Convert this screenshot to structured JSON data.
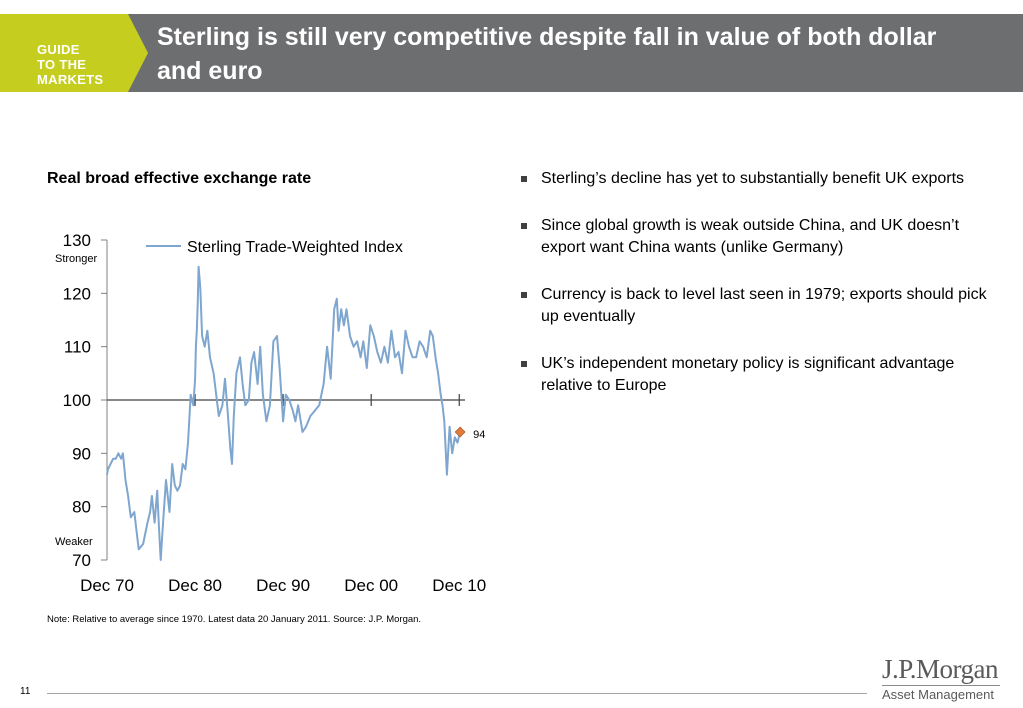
{
  "header": {
    "badge_lines": [
      "GUIDE",
      "TO THE",
      "MARKETS"
    ],
    "title": "Sterling is still very competitive despite fall in value of both dollar and euro",
    "badge_color": "#c5ce1e",
    "bar_color": "#6d6e70"
  },
  "chart_title": "Real broad effective exchange rate",
  "chart_data": {
    "type": "line",
    "title": "Real broad effective exchange rate",
    "ylim": [
      70,
      130
    ],
    "yticks": [
      70,
      80,
      90,
      100,
      110,
      120,
      130
    ],
    "ytick_labels": [
      "70",
      "80",
      "90",
      "100",
      "110",
      "120",
      "130"
    ],
    "xlim": [
      1970.9,
      2011.1
    ],
    "xtick_labels": [
      "Dec 70",
      "Dec 80",
      "Dec 90",
      "Dec 00",
      "Dec 10"
    ],
    "xtick_years": [
      1970.9,
      1980.9,
      1990.9,
      2000.9,
      2010.9
    ],
    "baseline": 100,
    "annotations": {
      "stronger": "Stronger",
      "weaker": "Weaker"
    },
    "series": [
      {
        "name": "Sterling Trade-Weighted Index",
        "color": "#7ea6cf",
        "x": [
          1970.9,
          1971.0,
          1971.3,
          1971.6,
          1971.9,
          1972.2,
          1972.5,
          1972.7,
          1973.0,
          1973.3,
          1973.6,
          1974.0,
          1974.5,
          1975.0,
          1975.5,
          1975.8,
          1976.0,
          1976.3,
          1976.6,
          1976.8,
          1977.0,
          1977.3,
          1977.6,
          1978.0,
          1978.3,
          1978.6,
          1978.9,
          1979.2,
          1979.5,
          1979.8,
          1980.1,
          1980.4,
          1980.7,
          1980.9,
          1981.0,
          1981.1,
          1981.2,
          1981.3,
          1981.5,
          1981.7,
          1982.0,
          1982.3,
          1982.6,
          1983.0,
          1983.3,
          1983.6,
          1984.0,
          1984.3,
          1984.6,
          1984.9,
          1985.1,
          1985.3,
          1985.6,
          1986.0,
          1986.3,
          1986.6,
          1987.0,
          1987.3,
          1987.6,
          1988.0,
          1988.3,
          1988.6,
          1989.0,
          1989.4,
          1989.8,
          1990.2,
          1990.5,
          1990.9,
          1991.2,
          1991.6,
          1992.0,
          1992.3,
          1992.6,
          1992.8,
          1993.1,
          1993.5,
          1994.0,
          1994.5,
          1995.0,
          1995.5,
          1995.9,
          1996.3,
          1996.7,
          1997.0,
          1997.2,
          1997.5,
          1997.8,
          1998.1,
          1998.5,
          1998.9,
          1999.3,
          1999.7,
          2000.0,
          2000.4,
          2000.8,
          2001.2,
          2001.6,
          2002.0,
          2002.4,
          2002.8,
          2003.2,
          2003.6,
          2004.0,
          2004.4,
          2004.8,
          2005.2,
          2005.6,
          2006.0,
          2006.4,
          2006.8,
          2007.2,
          2007.6,
          2007.9,
          2008.2,
          2008.5,
          2008.8,
          2009.0,
          2009.2,
          2009.5,
          2009.8,
          2010.1,
          2010.4,
          2010.7,
          2011.0
        ],
        "y": [
          86,
          87,
          88,
          89,
          89,
          90,
          89,
          90,
          85,
          82,
          78,
          79,
          72,
          73,
          77,
          79,
          82,
          77,
          83,
          76,
          70,
          78,
          85,
          79,
          88,
          84,
          83,
          84,
          88,
          87,
          92,
          101,
          99,
          104,
          110,
          113,
          118,
          125,
          121,
          112,
          110,
          113,
          108,
          105,
          101,
          97,
          99,
          104,
          98,
          91,
          88,
          97,
          105,
          108,
          103,
          99,
          100,
          107,
          109,
          103,
          110,
          101,
          96,
          99,
          111,
          112,
          106,
          96,
          101,
          100,
          98,
          96,
          99,
          97,
          94,
          95,
          97,
          98,
          99,
          103,
          110,
          104,
          117,
          119,
          113,
          117,
          114,
          117,
          112,
          110,
          111,
          108,
          111,
          106,
          114,
          112,
          109,
          107,
          110,
          107,
          113,
          108,
          109,
          105,
          113,
          110,
          108,
          108,
          111,
          110,
          108,
          113,
          112,
          108,
          105,
          101,
          99,
          96,
          86,
          95,
          90,
          93,
          92,
          94
        ]
      }
    ],
    "point_marker": {
      "x": 2011.0,
      "y": 94,
      "label": "94",
      "color": "#e07b39"
    }
  },
  "note": "Note: Relative to average since 1970. Latest data 20 January 2011. Source:  J.P. Morgan.",
  "bullets": [
    "Sterling’s decline has yet to substantially benefit UK exports",
    "Since global growth is weak outside China, and UK doesn’t export want China wants (unlike Germany)",
    "Currency is back to level last seen in 1979; exports should pick up eventually",
    "UK’s independent monetary policy is significant advantage relative to Europe"
  ],
  "footer": {
    "page_number": "11",
    "logo_main": "J.P.Morgan",
    "logo_sub": "Asset Management"
  }
}
